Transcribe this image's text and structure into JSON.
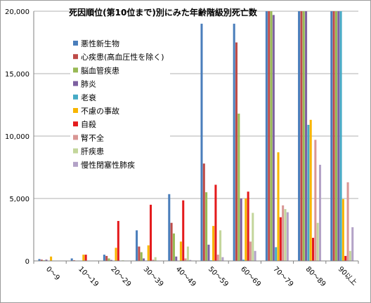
{
  "chart_data": {
    "type": "bar",
    "title": "死因順位(第10位まで)別にみた年齢階級別死亡数",
    "xlabel": "",
    "ylabel": "",
    "ylim": [
      0,
      20000
    ],
    "yticks": [
      0,
      5000,
      10000,
      15000,
      20000
    ],
    "ytick_labels": [
      "0",
      "5,000",
      "10,000",
      "15,000",
      "20,000"
    ],
    "grid": true,
    "legend_position": "inside-top-left",
    "categories": [
      "0〜9",
      "10〜19",
      "20〜29",
      "30〜39",
      "40〜49",
      "50〜59",
      "60〜69",
      "70〜79",
      "80〜89",
      "90以上"
    ],
    "series": [
      {
        "name": "悪性新生物",
        "color": "#4A7EBB",
        "values": [
          150,
          200,
          500,
          2450,
          5350,
          19000,
          19000,
          20000,
          20000,
          20000
        ]
      },
      {
        "name": "心疾患(高血圧性を除く)",
        "color": "#BE4B48",
        "values": [
          100,
          50,
          400,
          1150,
          3050,
          7800,
          17500,
          20000,
          20000,
          20000
        ]
      },
      {
        "name": "脳血管疾患",
        "color": "#98B954",
        "values": [
          50,
          20,
          200,
          700,
          2200,
          5500,
          11800,
          20000,
          20000,
          20000
        ]
      },
      {
        "name": "肺炎",
        "color": "#7D60A0",
        "values": [
          100,
          30,
          80,
          200,
          350,
          1300,
          5000,
          19700,
          20000,
          20000
        ]
      },
      {
        "name": "老衰",
        "color": "#46AAC5",
        "values": [
          0,
          0,
          0,
          0,
          0,
          50,
          100,
          1100,
          10900,
          20000
        ]
      },
      {
        "name": "不慮の事故",
        "color": "#F8B500",
        "values": [
          350,
          500,
          1050,
          1250,
          1550,
          2800,
          5000,
          8700,
          11300,
          4950
        ]
      },
      {
        "name": "自殺",
        "color": "#E41A1C",
        "values": [
          0,
          500,
          3200,
          4500,
          4850,
          6100,
          5550,
          3500,
          1850,
          400
        ]
      },
      {
        "name": "腎不全",
        "color": "#D99694",
        "values": [
          0,
          0,
          30,
          100,
          200,
          500,
          1550,
          4450,
          9700,
          6300
        ]
      },
      {
        "name": "肝疾患",
        "color": "#C3D69B",
        "values": [
          0,
          0,
          50,
          300,
          1150,
          2450,
          3850,
          4150,
          3050,
          800
        ]
      },
      {
        "name": "慢性閉塞性肺疾",
        "color": "#B3A2C7",
        "values": [
          0,
          0,
          0,
          30,
          80,
          300,
          800,
          3900,
          7700,
          2700
        ]
      }
    ]
  }
}
